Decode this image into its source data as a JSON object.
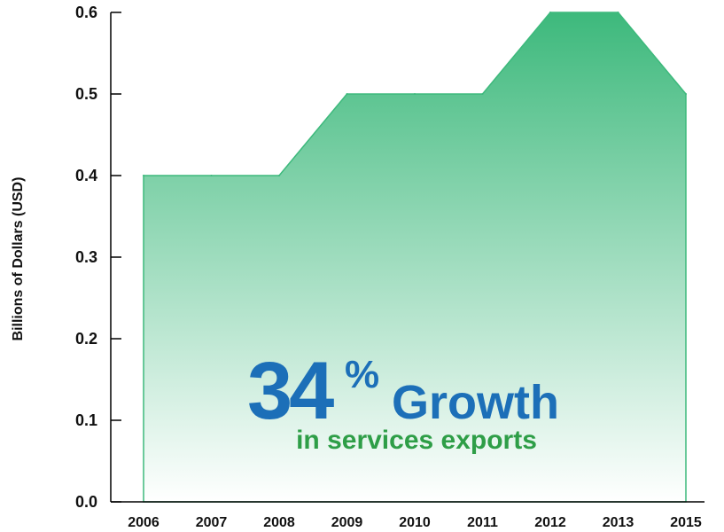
{
  "colors": {
    "area_top": "#3db97c",
    "area_bottom": "#ffffff",
    "area_stroke": "#3db97c",
    "growth_blue": "#1c6fb8",
    "growth_green": "#2e9e47",
    "axis": "#000000"
  },
  "chart_data": {
    "type": "area",
    "categories": [
      "2006",
      "2007",
      "2008",
      "2009",
      "2010",
      "2011",
      "2012",
      "2013",
      "2015"
    ],
    "values": [
      0.4,
      0.4,
      0.4,
      0.5,
      0.5,
      0.5,
      0.6,
      0.6,
      0.5
    ],
    "title": "",
    "xlabel": "",
    "ylabel": "Billions of Dollars (USD)",
    "ylim": [
      0.0,
      0.6
    ],
    "yticks": [
      "0.0",
      "0.1",
      "0.2",
      "0.3",
      "0.4",
      "0.5",
      "0.6"
    ],
    "grid": false,
    "legend": "none"
  },
  "callout": {
    "number": "34",
    "percent_sign": "%",
    "word": "Growth",
    "subtitle": "in services exports"
  }
}
